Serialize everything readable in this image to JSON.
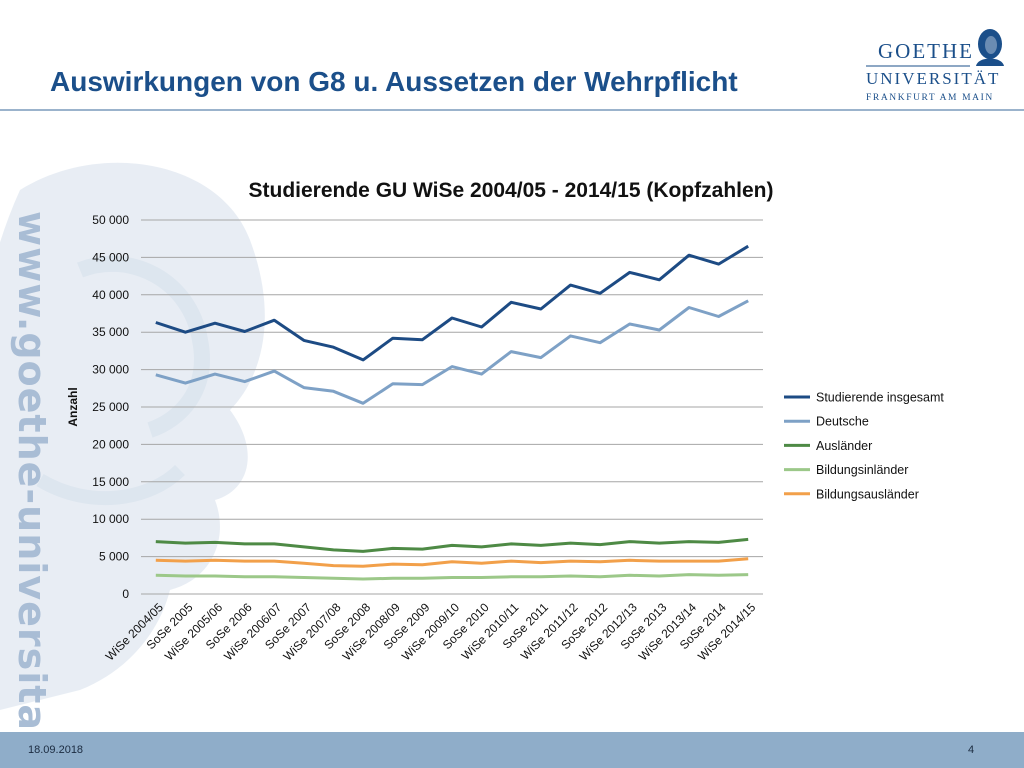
{
  "slide": {
    "title": "Auswirkungen von G8 u. Aussetzen der Wehrpflicht",
    "vertical_url": "www.goethe-universitaet.de",
    "logo": {
      "line1": "GOETHE",
      "line2": "UNIVERSITÄT",
      "line3": "FRANKFURT AM MAIN"
    },
    "footer": {
      "date": "18.09.2018",
      "page": "4"
    }
  },
  "colors": {
    "title": "#1b4f8a",
    "studierende_insgesamt": "#1d4b84",
    "deutsche": "#7ea1c6",
    "auslaender": "#4e8a45",
    "bildungsinlaender": "#9cc889",
    "bildungsauslaender": "#f2a04a",
    "footer": "#8fadc9"
  },
  "chart_data": {
    "type": "line",
    "title": "Studierende GU WiSe 2004/05 - 2014/15 (Kopfzahlen)",
    "xlabel": "",
    "ylabel": "Anzahl",
    "ylim": [
      0,
      50000
    ],
    "yticks": [
      0,
      5000,
      10000,
      15000,
      20000,
      25000,
      30000,
      35000,
      40000,
      45000,
      50000
    ],
    "ytick_labels": [
      "0",
      "5 000",
      "10 000",
      "15 000",
      "20 000",
      "25 000",
      "30 000",
      "35 000",
      "40 000",
      "45 000",
      "50 000"
    ],
    "grid": true,
    "legend_position": "right",
    "categories": [
      "WiSe 2004/05",
      "SoSe 2005",
      "WiSe 2005/06",
      "SoSe 2006",
      "WiSe 2006/07",
      "SoSe 2007",
      "WiSe 2007/08",
      "SoSe 2008",
      "WiSe 2008/09",
      "SoSe 2009",
      "WiSe 2009/10",
      "SoSe 2010",
      "WiSe 2010/11",
      "SoSe 2011",
      "WiSe 2011/12",
      "SoSe 2012",
      "WiSe 2012/13",
      "SoSe 2013",
      "WiSe 2013/14",
      "SoSe 2014",
      "WiSe 2014/15"
    ],
    "series": [
      {
        "name": "Studierende insgesamt",
        "color_key": "studierende_insgesamt",
        "values": [
          36300,
          35000,
          36200,
          35100,
          36600,
          33900,
          33000,
          31300,
          34200,
          34000,
          36900,
          35700,
          39000,
          38100,
          41300,
          40200,
          43000,
          42000,
          45300,
          44100,
          46500
        ]
      },
      {
        "name": "Deutsche",
        "color_key": "deutsche",
        "values": [
          29300,
          28200,
          29400,
          28400,
          29800,
          27600,
          27100,
          25500,
          28100,
          28000,
          30400,
          29400,
          32400,
          31600,
          34500,
          33600,
          36100,
          35300,
          38300,
          37100,
          39200
        ]
      },
      {
        "name": "Ausländer",
        "color_key": "auslaender",
        "values": [
          7000,
          6800,
          6900,
          6700,
          6700,
          6300,
          5900,
          5700,
          6100,
          6000,
          6500,
          6300,
          6700,
          6500,
          6800,
          6600,
          7000,
          6800,
          7000,
          6900,
          7300
        ]
      },
      {
        "name": "Bildungsinländer",
        "color_key": "bildungsinlaender",
        "values": [
          2500,
          2400,
          2400,
          2300,
          2300,
          2200,
          2100,
          2000,
          2100,
          2100,
          2200,
          2200,
          2300,
          2300,
          2400,
          2300,
          2500,
          2400,
          2600,
          2500,
          2600
        ]
      },
      {
        "name": "Bildungsausländer",
        "color_key": "bildungsauslaender",
        "values": [
          4500,
          4400,
          4500,
          4400,
          4400,
          4100,
          3800,
          3700,
          4000,
          3900,
          4300,
          4100,
          4400,
          4200,
          4400,
          4300,
          4500,
          4400,
          4400,
          4400,
          4700
        ]
      }
    ]
  }
}
